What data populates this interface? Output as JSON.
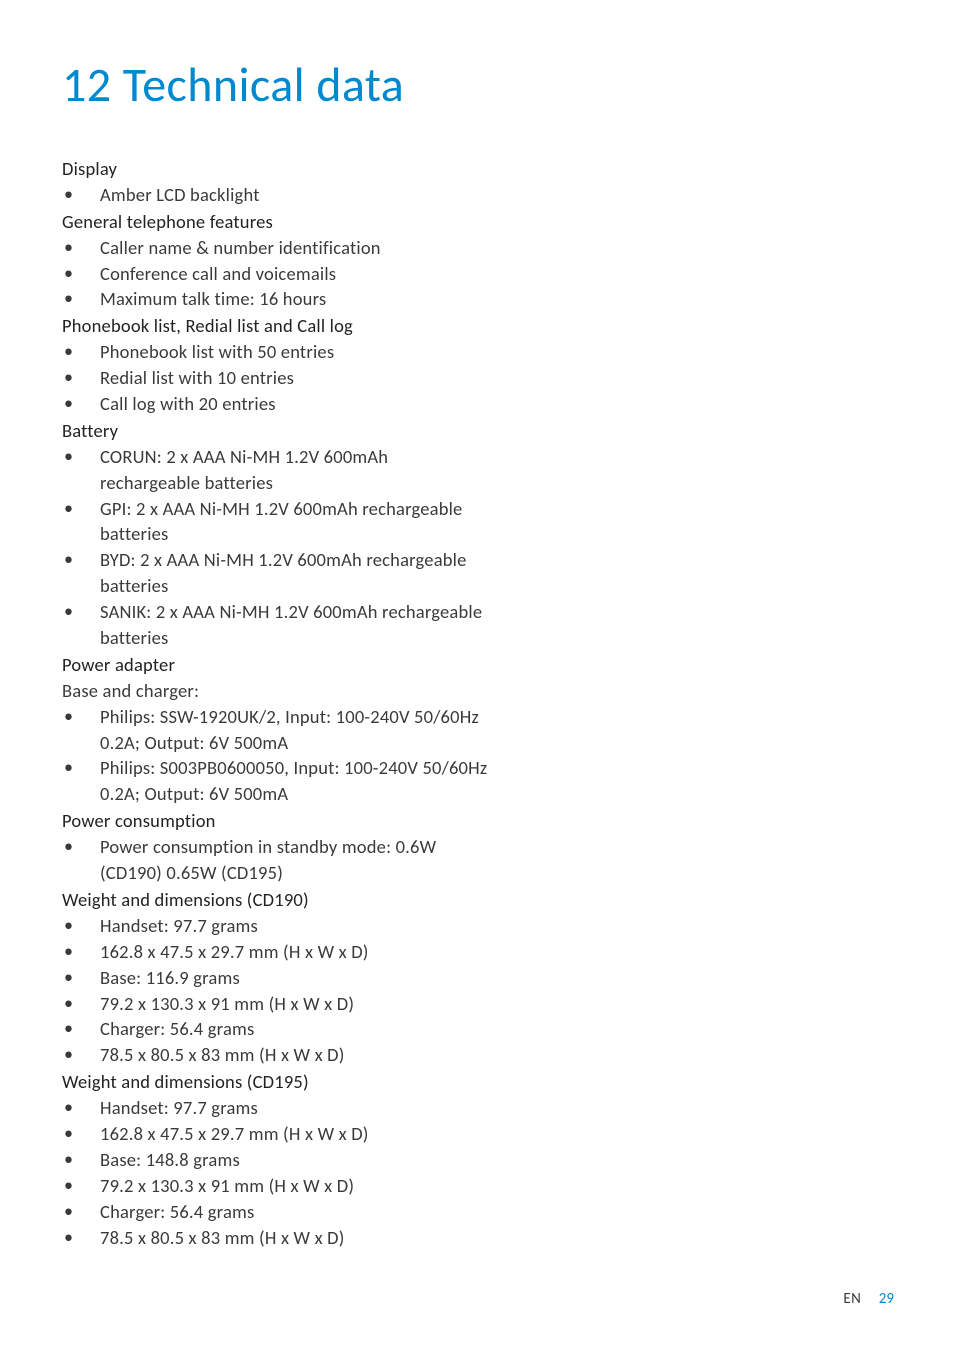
{
  "chapter": {
    "number": "12",
    "title": "Technical data"
  },
  "sections": [
    {
      "heading": "Display",
      "items": [
        "Amber LCD backlight"
      ]
    },
    {
      "heading": "General telephone features",
      "items": [
        "Caller name & number identification",
        "Conference call and voicemails",
        "Maximum talk time: 16 hours"
      ]
    },
    {
      "heading": "Phonebook list, Redial list and Call log",
      "items": [
        "Phonebook list with 50 entries",
        "Redial list with 10 entries",
        "Call log with 20 entries"
      ]
    },
    {
      "heading": "Battery",
      "items": [
        "CORUN: 2 x AAA Ni-MH 1.2V 600mAh rechargeable batteries",
        "GPI: 2 x AAA Ni-MH 1.2V 600mAh rechargeable batteries",
        "BYD: 2 x AAA Ni-MH 1.2V 600mAh rechargeable batteries",
        "SANIK: 2 x AAA Ni-MH 1.2V 600mAh rechargeable batteries"
      ]
    },
    {
      "heading": "Power adapter",
      "intro": "Base and charger:",
      "items": [
        "Philips: SSW-1920UK/2, Input: 100-240V 50/60Hz 0.2A; Output: 6V 500mA",
        "Philips: S003PB0600050, Input: 100-240V 50/60Hz 0.2A; Output: 6V 500mA"
      ]
    },
    {
      "heading": "Power consumption",
      "items": [
        "Power consumption in standby mode: 0.6W (CD190) 0.65W (CD195)"
      ]
    },
    {
      "heading": "Weight and dimensions (CD190)",
      "items": [
        "Handset: 97.7 grams",
        "162.8 x 47.5 x 29.7 mm (H x W x D)",
        "Base: 116.9 grams",
        "79.2 x 130.3 x 91 mm (H x W x D)",
        "Charger: 56.4 grams",
        "78.5 x 80.5 x 83 mm (H x W x D)"
      ]
    },
    {
      "heading": "Weight and dimensions (CD195)",
      "items": [
        "Handset: 97.7 grams",
        "162.8 x 47.5 x 29.7 mm (H x W x D)",
        "Base: 148.8 grams",
        "79.2 x 130.3 x 91 mm (H x W x D)",
        "Charger: 56.4 grams",
        "78.5 x 80.5 x 83 mm (H x W x D)"
      ]
    }
  ],
  "footer": {
    "lang": "EN",
    "page": "29"
  },
  "colors": {
    "accent": "#0089cf",
    "text": "#3a3a3a",
    "heading": "#222222",
    "background": "#ffffff"
  },
  "typography": {
    "title_fontsize": 48,
    "body_fontsize": 18.5,
    "footer_fontsize": 15
  }
}
